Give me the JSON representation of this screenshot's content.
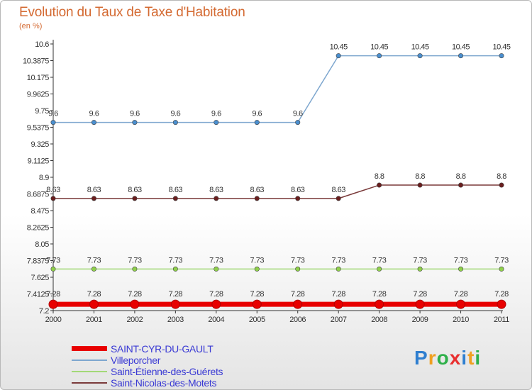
{
  "chart_data": {
    "type": "line",
    "title": "Evolution du Taux de Taxe d'Habitation",
    "subtitle": "(en %)",
    "x": [
      "2000",
      "2001",
      "2002",
      "2003",
      "2004",
      "2005",
      "2006",
      "2007",
      "2008",
      "2009",
      "2010",
      "2011"
    ],
    "yticks": [
      "7.2",
      "7.4125",
      "7.625",
      "7.8375",
      "8.05",
      "8.2625",
      "8.475",
      "8.6875",
      "8.9",
      "9.1125",
      "9.325",
      "9.5375",
      "9.75",
      "9.9625",
      "10.175",
      "10.3875",
      "10.6"
    ],
    "ylim": [
      7.2,
      10.6
    ],
    "grid": false,
    "legend_position": "bottom-left",
    "series": [
      {
        "name": "SAINT-CYR-DU-GAULT",
        "color": "#e80000",
        "values": [
          7.28,
          7.28,
          7.28,
          7.28,
          7.28,
          7.28,
          7.28,
          7.28,
          7.28,
          7.28,
          7.28,
          7.28
        ],
        "labels": [
          "7.28",
          "7.28",
          "7.28",
          "7.28",
          "7.28",
          "7.28",
          "7.28",
          "7.28",
          "7.28",
          "7.28",
          "7.28",
          "7.28"
        ]
      },
      {
        "name": "Villeporcher",
        "color": "#7ea7cf",
        "values": [
          9.6,
          9.6,
          9.6,
          9.6,
          9.6,
          9.6,
          9.6,
          10.45,
          10.45,
          10.45,
          10.45,
          10.45
        ],
        "labels": [
          "9.6",
          "9.6",
          "9.6",
          "9.6",
          "9.6",
          "9.6",
          "9.6",
          "10.45",
          "10.45",
          "10.45",
          "10.45",
          "10.45"
        ]
      },
      {
        "name": "Saint-Étienne-des-Guérets",
        "color": "#a3d977",
        "values": [
          7.73,
          7.73,
          7.73,
          7.73,
          7.73,
          7.73,
          7.73,
          7.73,
          7.73,
          7.73,
          7.73,
          7.73
        ],
        "labels": [
          "7.73",
          "7.73",
          "7.73",
          "7.73",
          "7.73",
          "7.73",
          "7.73",
          "7.73",
          "7.73",
          "7.73",
          "7.73",
          "7.73"
        ]
      },
      {
        "name": "Saint-Nicolas-des-Motets",
        "color": "#7a3a3a",
        "values": [
          8.63,
          8.63,
          8.63,
          8.63,
          8.63,
          8.63,
          8.63,
          8.63,
          8.8,
          8.8,
          8.8,
          8.8
        ],
        "labels": [
          "8.63",
          "8.63",
          "8.63",
          "8.63",
          "8.63",
          "8.63",
          "8.63",
          "8.63",
          "8.8",
          "8.8",
          "8.8",
          "8.8"
        ]
      }
    ]
  },
  "legend": {
    "items": [
      {
        "label": "SAINT-CYR-DU-GAULT",
        "color": "#e80000"
      },
      {
        "label": "Villeporcher",
        "color": "#7ea7cf"
      },
      {
        "label": "Saint-Étienne-des-Guérets",
        "color": "#a3d977"
      },
      {
        "label": "Saint-Nicolas-des-Motets",
        "color": "#7a3a3a"
      }
    ]
  },
  "logo": {
    "text": "Proxiti",
    "letters": [
      "P",
      "r",
      "o",
      "x",
      "i",
      "t",
      "i"
    ],
    "colors": [
      "#2f7fd0",
      "#f0a020",
      "#2fb04a",
      "#e83030",
      "#2f7fd0",
      "#f0a020",
      "#2fb04a"
    ]
  }
}
